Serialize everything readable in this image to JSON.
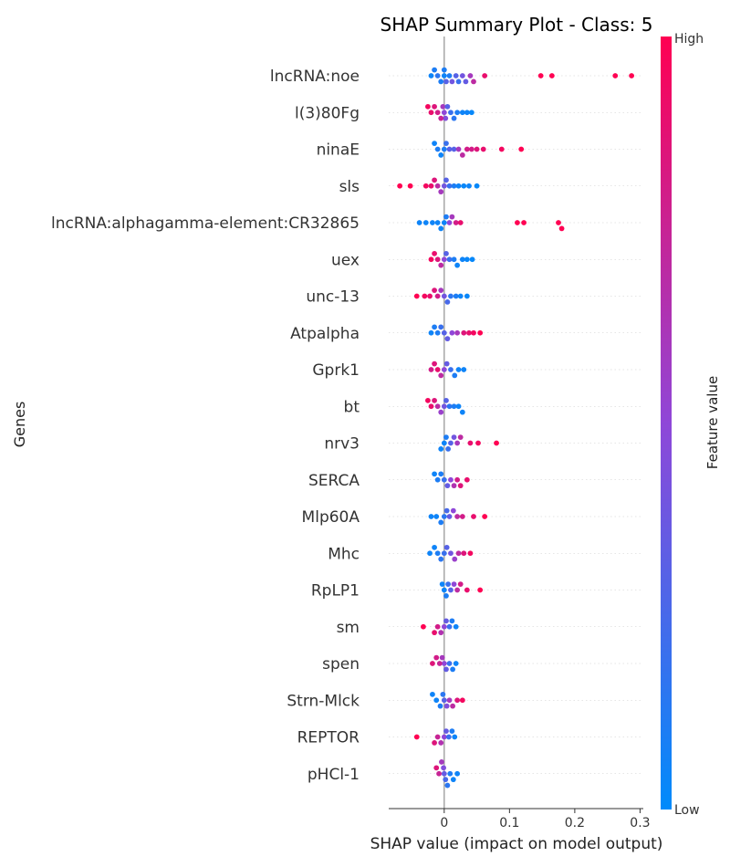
{
  "chart_data": {
    "type": "scatter",
    "title": "SHAP Summary Plot - Class: 5",
    "xlabel": "SHAP value (impact on model output)",
    "ylabel": "Genes",
    "xlim": [
      -0.085,
      0.305
    ],
    "xticks": [
      0,
      0.1,
      0.2,
      0.3
    ],
    "xtick_labels": [
      "0",
      "0.1",
      "0.2",
      "0.3"
    ],
    "colorbar": {
      "label": "Feature value",
      "high_label": "High",
      "low_label": "Low",
      "low_color": "#008bfb",
      "mid_color": "#8f47d8",
      "high_color": "#ff0052"
    },
    "features": [
      {
        "name": "lncRNA:noe",
        "points": [
          [
            -0.02,
            0.05
          ],
          [
            -0.015,
            0.1
          ],
          [
            -0.01,
            0.15
          ],
          [
            -0.005,
            0.1
          ],
          [
            0,
            0.05
          ],
          [
            0,
            0.1
          ],
          [
            0.003,
            0.3
          ],
          [
            0.008,
            0.1
          ],
          [
            0.012,
            0.4
          ],
          [
            0.018,
            0.3
          ],
          [
            0.022,
            0.2
          ],
          [
            0.028,
            0.4
          ],
          [
            0.033,
            0.35
          ],
          [
            0.04,
            0.6
          ],
          [
            0.045,
            0.7
          ],
          [
            0.062,
            0.9
          ],
          [
            0.148,
            1
          ],
          [
            0.165,
            1
          ],
          [
            0.262,
            1
          ],
          [
            0.287,
            1
          ]
        ]
      },
      {
        "name": "l(3)80Fg",
        "points": [
          [
            -0.025,
            0.95
          ],
          [
            -0.02,
            0.9
          ],
          [
            -0.015,
            0.85
          ],
          [
            -0.01,
            0.8
          ],
          [
            -0.005,
            0.75
          ],
          [
            -0.002,
            0.6
          ],
          [
            0,
            0.5
          ],
          [
            0.002,
            0.45
          ],
          [
            0.005,
            0.3
          ],
          [
            0.01,
            0.2
          ],
          [
            0.015,
            0.15
          ],
          [
            0.02,
            0.1
          ],
          [
            0.028,
            0.05
          ],
          [
            0.035,
            0.05
          ],
          [
            0.042,
            0.02
          ]
        ]
      },
      {
        "name": "ninaE",
        "points": [
          [
            -0.015,
            0.05
          ],
          [
            -0.01,
            0.1
          ],
          [
            -0.005,
            0.05
          ],
          [
            0,
            0.1
          ],
          [
            0.003,
            0.2
          ],
          [
            0.008,
            0.3
          ],
          [
            0.015,
            0.3
          ],
          [
            0.022,
            0.6
          ],
          [
            0.028,
            0.7
          ],
          [
            0.035,
            0.8
          ],
          [
            0.042,
            0.8
          ],
          [
            0.05,
            0.85
          ],
          [
            0.06,
            0.9
          ],
          [
            0.088,
            0.95
          ],
          [
            0.118,
            1
          ]
        ]
      },
      {
        "name": "sls",
        "points": [
          [
            -0.068,
            1
          ],
          [
            -0.052,
            1
          ],
          [
            -0.028,
            0.95
          ],
          [
            -0.02,
            0.9
          ],
          [
            -0.015,
            0.85
          ],
          [
            -0.01,
            0.7
          ],
          [
            -0.005,
            0.6
          ],
          [
            0,
            0.4
          ],
          [
            0.003,
            0.3
          ],
          [
            0.008,
            0.2
          ],
          [
            0.015,
            0.1
          ],
          [
            0.022,
            0.05
          ],
          [
            0.03,
            0.03
          ],
          [
            0.038,
            0.05
          ],
          [
            0.05,
            0.02
          ]
        ]
      },
      {
        "name": "lncRNA:alphagamma-element:CR32865",
        "points": [
          [
            -0.038,
            0.05
          ],
          [
            -0.028,
            0.05
          ],
          [
            -0.018,
            0.05
          ],
          [
            -0.01,
            0.05
          ],
          [
            -0.005,
            0.05
          ],
          [
            0,
            0.05
          ],
          [
            0.003,
            0.1
          ],
          [
            0.008,
            0.5
          ],
          [
            0.012,
            0.6
          ],
          [
            0.018,
            0.8
          ],
          [
            0.025,
            0.9
          ],
          [
            0.112,
            1
          ],
          [
            0.122,
            1
          ],
          [
            0.175,
            1
          ],
          [
            0.18,
            1
          ]
        ]
      },
      {
        "name": "uex",
        "points": [
          [
            -0.02,
            0.95
          ],
          [
            -0.015,
            0.9
          ],
          [
            -0.01,
            0.85
          ],
          [
            -0.005,
            0.7
          ],
          [
            0,
            0.5
          ],
          [
            0.003,
            0.3
          ],
          [
            0.008,
            0.2
          ],
          [
            0.015,
            0.1
          ],
          [
            0.02,
            0.05
          ],
          [
            0.028,
            0.05
          ],
          [
            0.035,
            0.03
          ],
          [
            0.043,
            0.02
          ]
        ]
      },
      {
        "name": "unc-13",
        "points": [
          [
            -0.042,
            1
          ],
          [
            -0.03,
            0.95
          ],
          [
            -0.022,
            0.9
          ],
          [
            -0.015,
            0.85
          ],
          [
            -0.01,
            0.8
          ],
          [
            -0.005,
            0.6
          ],
          [
            0,
            0.4
          ],
          [
            0.005,
            0.25
          ],
          [
            0.01,
            0.15
          ],
          [
            0.018,
            0.1
          ],
          [
            0.025,
            0.05
          ],
          [
            0.035,
            0.03
          ]
        ]
      },
      {
        "name": "Atpalpha",
        "points": [
          [
            -0.02,
            0.05
          ],
          [
            -0.015,
            0.1
          ],
          [
            -0.01,
            0.1
          ],
          [
            -0.005,
            0.2
          ],
          [
            0,
            0.3
          ],
          [
            0.005,
            0.35
          ],
          [
            0.012,
            0.5
          ],
          [
            0.02,
            0.6
          ],
          [
            0.03,
            0.85
          ],
          [
            0.038,
            0.9
          ],
          [
            0.045,
            0.95
          ],
          [
            0.055,
            1
          ]
        ]
      },
      {
        "name": "Gprk1",
        "points": [
          [
            -0.02,
            0.8
          ],
          [
            -0.015,
            0.85
          ],
          [
            -0.01,
            0.9
          ],
          [
            -0.005,
            0.7
          ],
          [
            0,
            0.5
          ],
          [
            0.004,
            0.35
          ],
          [
            0.01,
            0.2
          ],
          [
            0.016,
            0.1
          ],
          [
            0.022,
            0.05
          ],
          [
            0.03,
            0.05
          ]
        ]
      },
      {
        "name": "bt",
        "points": [
          [
            -0.025,
            0.95
          ],
          [
            -0.02,
            0.9
          ],
          [
            -0.015,
            0.85
          ],
          [
            -0.01,
            0.7
          ],
          [
            -0.005,
            0.55
          ],
          [
            0,
            0.4
          ],
          [
            0.003,
            0.3
          ],
          [
            0.008,
            0.15
          ],
          [
            0.015,
            0.1
          ],
          [
            0.022,
            0.05
          ],
          [
            0.028,
            0.05
          ]
        ]
      },
      {
        "name": "nrv3",
        "points": [
          [
            -0.005,
            0.05
          ],
          [
            0,
            0.05
          ],
          [
            0.003,
            0.1
          ],
          [
            0.006,
            0.2
          ],
          [
            0.01,
            0.3
          ],
          [
            0.015,
            0.4
          ],
          [
            0.02,
            0.6
          ],
          [
            0.025,
            0.7
          ],
          [
            0.04,
            0.9
          ],
          [
            0.052,
            0.95
          ],
          [
            0.08,
            1
          ]
        ]
      },
      {
        "name": "SERCA",
        "points": [
          [
            -0.015,
            0.05
          ],
          [
            -0.01,
            0.1
          ],
          [
            -0.005,
            0.1
          ],
          [
            0,
            0.2
          ],
          [
            0.005,
            0.35
          ],
          [
            0.01,
            0.5
          ],
          [
            0.015,
            0.65
          ],
          [
            0.02,
            0.8
          ],
          [
            0.025,
            0.85
          ],
          [
            0.035,
            0.9
          ]
        ]
      },
      {
        "name": "Mlp60A",
        "points": [
          [
            -0.02,
            0.05
          ],
          [
            -0.012,
            0.05
          ],
          [
            -0.005,
            0.1
          ],
          [
            0,
            0.15
          ],
          [
            0.004,
            0.25
          ],
          [
            0.008,
            0.35
          ],
          [
            0.014,
            0.5
          ],
          [
            0.02,
            0.7
          ],
          [
            0.028,
            0.8
          ],
          [
            0.045,
            0.9
          ],
          [
            0.062,
            1
          ]
        ]
      },
      {
        "name": "Mhc",
        "points": [
          [
            -0.022,
            0.05
          ],
          [
            -0.015,
            0.05
          ],
          [
            -0.01,
            0.1
          ],
          [
            -0.005,
            0.15
          ],
          [
            0,
            0.2
          ],
          [
            0.004,
            0.3
          ],
          [
            0.01,
            0.4
          ],
          [
            0.016,
            0.55
          ],
          [
            0.022,
            0.7
          ],
          [
            0.03,
            0.85
          ],
          [
            0.04,
            0.95
          ]
        ]
      },
      {
        "name": "RpLP1",
        "points": [
          [
            -0.003,
            0.05
          ],
          [
            0,
            0.05
          ],
          [
            0.003,
            0.1
          ],
          [
            0.006,
            0.2
          ],
          [
            0.01,
            0.3
          ],
          [
            0.015,
            0.5
          ],
          [
            0.02,
            0.7
          ],
          [
            0.025,
            0.8
          ],
          [
            0.035,
            0.9
          ],
          [
            0.055,
            1
          ]
        ]
      },
      {
        "name": "sm",
        "points": [
          [
            -0.032,
            1
          ],
          [
            -0.015,
            0.9
          ],
          [
            -0.01,
            0.8
          ],
          [
            -0.005,
            0.65
          ],
          [
            0,
            0.5
          ],
          [
            0.003,
            0.35
          ],
          [
            0.008,
            0.2
          ],
          [
            0.012,
            0.1
          ],
          [
            0.018,
            0.05
          ]
        ]
      },
      {
        "name": "spen",
        "points": [
          [
            -0.018,
            0.85
          ],
          [
            -0.012,
            0.8
          ],
          [
            -0.007,
            0.75
          ],
          [
            -0.003,
            0.6
          ],
          [
            0,
            0.5
          ],
          [
            0.003,
            0.35
          ],
          [
            0.008,
            0.2
          ],
          [
            0.013,
            0.1
          ],
          [
            0.018,
            0.05
          ]
        ]
      },
      {
        "name": "Strn-Mlck",
        "points": [
          [
            -0.018,
            0.05
          ],
          [
            -0.012,
            0.05
          ],
          [
            -0.006,
            0.1
          ],
          [
            -0.002,
            0.15
          ],
          [
            0,
            0.3
          ],
          [
            0.004,
            0.45
          ],
          [
            0.008,
            0.6
          ],
          [
            0.013,
            0.7
          ],
          [
            0.02,
            0.85
          ],
          [
            0.028,
            0.95
          ]
        ]
      },
      {
        "name": "REPTOR",
        "points": [
          [
            -0.042,
            1
          ],
          [
            -0.015,
            0.85
          ],
          [
            -0.01,
            0.75
          ],
          [
            -0.005,
            0.65
          ],
          [
            0,
            0.5
          ],
          [
            0.003,
            0.35
          ],
          [
            0.007,
            0.2
          ],
          [
            0.012,
            0.1
          ],
          [
            0.016,
            0.05
          ]
        ]
      },
      {
        "name": "pHCl-1",
        "points": [
          [
            -0.012,
            0.85
          ],
          [
            -0.008,
            0.75
          ],
          [
            -0.004,
            0.6
          ],
          [
            -0.001,
            0.45
          ],
          [
            0,
            0.35
          ],
          [
            0.002,
            0.25
          ],
          [
            0.005,
            0.15
          ],
          [
            0.009,
            0.1
          ],
          [
            0.014,
            0.05
          ],
          [
            0.02,
            0.05
          ]
        ]
      }
    ]
  }
}
